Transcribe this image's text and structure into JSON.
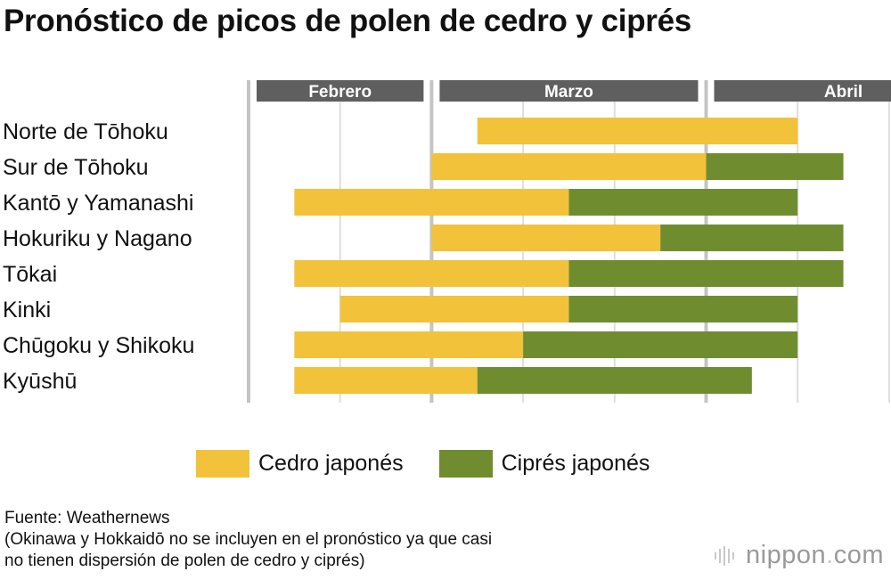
{
  "title": "Pronóstico de picos de polen de cedro y ciprés",
  "chart_data": {
    "type": "bar",
    "subtype": "horizontal-stacked-range",
    "title": "Pronóstico de picos de polen de cedro y ciprés",
    "unit": "period of month (early / mid / late)",
    "axis_periods": [
      "Febrero-mid",
      "Febrero-late",
      "Marzo-early",
      "Marzo-mid",
      "Marzo-late",
      "Abril-early",
      "Abril-mid",
      "Abril-late"
    ],
    "months": [
      {
        "label": "Febrero",
        "start": 0,
        "end": 2
      },
      {
        "label": "Marzo",
        "start": 2,
        "end": 5
      },
      {
        "label": "Abril",
        "start": 5,
        "end": 8
      }
    ],
    "xlim": [
      0,
      8
    ],
    "categories": [
      "Norte de Tōhoku",
      "Sur de Tōhoku",
      "Kantō y Yamanashi",
      "Hokuriku y Nagano",
      "Tōkai",
      "Kinki",
      "Chūgoku y Shikoku",
      "Kyūshū"
    ],
    "series": [
      {
        "name": "Cedro japonés",
        "color": "#f2c23a",
        "ranges": [
          [
            2.5,
            6
          ],
          [
            2,
            5
          ],
          [
            0.5,
            3.5
          ],
          [
            2,
            4.5
          ],
          [
            0.5,
            3.5
          ],
          [
            1,
            3.5
          ],
          [
            0.5,
            3
          ],
          [
            0.5,
            2.5
          ]
        ]
      },
      {
        "name": "Ciprés japonés",
        "color": "#6f8d2f",
        "ranges": [
          null,
          [
            5,
            6.5
          ],
          [
            3.5,
            6
          ],
          [
            4.5,
            6.5
          ],
          [
            3.5,
            6.5
          ],
          [
            3.5,
            6
          ],
          [
            3,
            6
          ],
          [
            2.5,
            5.5
          ]
        ]
      }
    ]
  },
  "legend": [
    {
      "label": "Cedro japonés",
      "color": "#f2c23a"
    },
    {
      "label": "Ciprés japonés",
      "color": "#6f8d2f"
    }
  ],
  "source": {
    "line1": "Fuente: Weathernews",
    "line2": "(Okinawa y Hokkaidō no se incluyen en el pronóstico ya que casi",
    "line3": "no tienen dispersión de polen de cedro y ciprés)"
  },
  "brand": {
    "name": "nippon",
    "dot": ".",
    "tld": "com"
  }
}
